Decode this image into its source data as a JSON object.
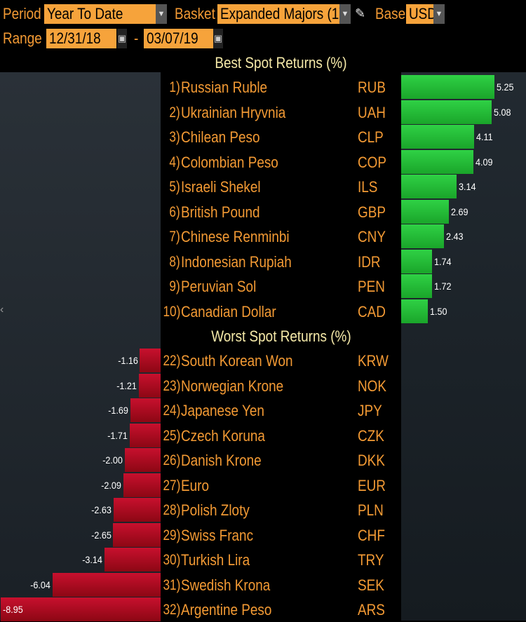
{
  "controls": {
    "period_label": "Period",
    "period_value": "Year To Date",
    "basket_label": "Basket",
    "basket_value": "Expanded Majors (1)",
    "base_label": "Base",
    "base_value": "USD",
    "range_label": "Range",
    "range_start": "12/31/18",
    "range_sep": "-",
    "range_end": "03/07/19"
  },
  "best": {
    "title": "Best Spot Returns (%)",
    "rows": [
      {
        "rank": "1)",
        "name": "Russian Ruble",
        "code": "RUB",
        "value": "5.25"
      },
      {
        "rank": "2)",
        "name": "Ukrainian Hryvnia",
        "code": "UAH",
        "value": "5.08"
      },
      {
        "rank": "3)",
        "name": "Chilean Peso",
        "code": "CLP",
        "value": "4.11"
      },
      {
        "rank": "4)",
        "name": "Colombian Peso",
        "code": "COP",
        "value": "4.09"
      },
      {
        "rank": "5)",
        "name": "Israeli Shekel",
        "code": "ILS",
        "value": "3.14"
      },
      {
        "rank": "6)",
        "name": "British Pound",
        "code": "GBP",
        "value": "2.69"
      },
      {
        "rank": "7)",
        "name": "Chinese Renminbi",
        "code": "CNY",
        "value": "2.43"
      },
      {
        "rank": "8)",
        "name": "Indonesian Rupiah",
        "code": "IDR",
        "value": "1.74"
      },
      {
        "rank": "9)",
        "name": "Peruvian Sol",
        "code": "PEN",
        "value": "1.72"
      },
      {
        "rank": "10)",
        "name": "Canadian Dollar",
        "code": "CAD",
        "value": "1.50"
      }
    ]
  },
  "worst": {
    "title": "Worst Spot Returns (%)",
    "rows": [
      {
        "rank": "22)",
        "name": "South Korean Won",
        "code": "KRW",
        "value": "-1.16"
      },
      {
        "rank": "23)",
        "name": "Norwegian Krone",
        "code": "NOK",
        "value": "-1.21"
      },
      {
        "rank": "24)",
        "name": "Japanese Yen",
        "code": "JPY",
        "value": "-1.69"
      },
      {
        "rank": "25)",
        "name": "Czech Koruna",
        "code": "CZK",
        "value": "-1.71"
      },
      {
        "rank": "26)",
        "name": "Danish Krone",
        "code": "DKK",
        "value": "-2.00"
      },
      {
        "rank": "27)",
        "name": "Euro",
        "code": "EUR",
        "value": "-2.09"
      },
      {
        "rank": "28)",
        "name": "Polish Zloty",
        "code": "PLN",
        "value": "-2.63"
      },
      {
        "rank": "29)",
        "name": "Swiss Franc",
        "code": "CHF",
        "value": "-2.65"
      },
      {
        "rank": "30)",
        "name": "Turkish Lira",
        "code": "TRY",
        "value": "-3.14"
      },
      {
        "rank": "31)",
        "name": "Swedish Krona",
        "code": "SEK",
        "value": "-6.04"
      },
      {
        "rank": "32)",
        "name": "Argentine Peso",
        "code": "ARS",
        "value": "-8.95"
      }
    ]
  },
  "colors": {
    "accent": "#f39a34",
    "title": "#f5e9a8",
    "positive": "#22b834",
    "negative": "#b00c20"
  }
}
